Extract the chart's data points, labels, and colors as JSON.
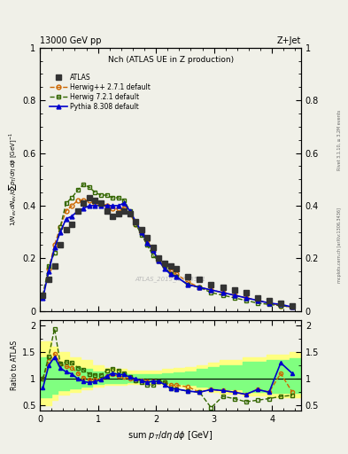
{
  "title_top": "13000 GeV pp",
  "title_right": "Z+Jet",
  "panel_title": "Nch (ATLAS UE in Z production)",
  "watermark": "ATLAS_2019_I1736531",
  "rivet_text": "Rivet 3.1.10, ≥ 3.2M events",
  "mcplots_text": "mcplots.cern.ch [arXiv:1306.3436]",
  "ylabel_main": "1/N_{ev} dN_{ev}/dsum p_T/dη dφ  [GeV]^{-1}",
  "ylabel_ratio": "Ratio to ATLAS",
  "xlabel": "sum p_T/dη dφ [GeV]",
  "atlas_x": [
    0.05,
    0.15,
    0.25,
    0.35,
    0.45,
    0.55,
    0.65,
    0.75,
    0.85,
    0.95,
    1.05,
    1.15,
    1.25,
    1.35,
    1.45,
    1.55,
    1.65,
    1.75,
    1.85,
    1.95,
    2.05,
    2.15,
    2.25,
    2.35,
    2.55,
    2.75,
    2.95,
    3.15,
    3.35,
    3.55,
    3.75,
    3.95,
    4.15,
    4.35
  ],
  "atlas_y": [
    0.06,
    0.12,
    0.17,
    0.25,
    0.31,
    0.33,
    0.38,
    0.41,
    0.43,
    0.42,
    0.41,
    0.38,
    0.36,
    0.37,
    0.38,
    0.37,
    0.34,
    0.31,
    0.28,
    0.24,
    0.2,
    0.18,
    0.17,
    0.16,
    0.13,
    0.12,
    0.1,
    0.09,
    0.08,
    0.07,
    0.05,
    0.04,
    0.03,
    0.02
  ],
  "herwig271_x": [
    0.05,
    0.15,
    0.25,
    0.35,
    0.45,
    0.55,
    0.65,
    0.75,
    0.85,
    0.95,
    1.05,
    1.15,
    1.25,
    1.35,
    1.45,
    1.55,
    1.65,
    1.75,
    1.85,
    1.95,
    2.05,
    2.15,
    2.25,
    2.35,
    2.55,
    2.75,
    2.95,
    3.15,
    3.35,
    3.55,
    3.75,
    3.95,
    4.15,
    4.35
  ],
  "herwig271_y": [
    0.06,
    0.16,
    0.25,
    0.32,
    0.38,
    0.4,
    0.42,
    0.42,
    0.42,
    0.41,
    0.41,
    0.4,
    0.39,
    0.39,
    0.39,
    0.37,
    0.33,
    0.3,
    0.27,
    0.23,
    0.19,
    0.17,
    0.15,
    0.14,
    0.11,
    0.09,
    0.08,
    0.07,
    0.06,
    0.05,
    0.04,
    0.03,
    0.02,
    0.015
  ],
  "herwig721_x": [
    0.05,
    0.15,
    0.25,
    0.35,
    0.45,
    0.55,
    0.65,
    0.75,
    0.85,
    0.95,
    1.05,
    1.15,
    1.25,
    1.35,
    1.45,
    1.55,
    1.65,
    1.75,
    1.85,
    1.95,
    2.05,
    2.15,
    2.25,
    2.35,
    2.55,
    2.75,
    2.95,
    3.15,
    3.35,
    3.55,
    3.75,
    3.95,
    4.15,
    4.35
  ],
  "herwig721_y": [
    0.06,
    0.17,
    0.22,
    0.32,
    0.41,
    0.43,
    0.46,
    0.48,
    0.47,
    0.45,
    0.44,
    0.44,
    0.43,
    0.43,
    0.42,
    0.38,
    0.33,
    0.29,
    0.25,
    0.21,
    0.19,
    0.17,
    0.14,
    0.13,
    0.1,
    0.09,
    0.07,
    0.06,
    0.05,
    0.04,
    0.03,
    0.025,
    0.02,
    0.015
  ],
  "pythia_x": [
    0.05,
    0.15,
    0.25,
    0.35,
    0.45,
    0.55,
    0.65,
    0.75,
    0.85,
    0.95,
    1.05,
    1.15,
    1.25,
    1.35,
    1.45,
    1.55,
    1.65,
    1.75,
    1.85,
    1.95,
    2.05,
    2.15,
    2.25,
    2.35,
    2.55,
    2.75,
    2.95,
    3.15,
    3.35,
    3.55,
    3.75,
    3.95,
    4.15,
    4.35
  ],
  "pythia_y": [
    0.05,
    0.15,
    0.24,
    0.3,
    0.35,
    0.36,
    0.38,
    0.39,
    0.4,
    0.4,
    0.4,
    0.4,
    0.4,
    0.4,
    0.41,
    0.38,
    0.34,
    0.3,
    0.26,
    0.23,
    0.19,
    0.16,
    0.14,
    0.13,
    0.1,
    0.09,
    0.08,
    0.07,
    0.06,
    0.05,
    0.04,
    0.03,
    0.025,
    0.015
  ],
  "ratio_herwig271_x": [
    0.05,
    0.15,
    0.25,
    0.35,
    0.45,
    0.55,
    0.65,
    0.75,
    0.85,
    0.95,
    1.05,
    1.15,
    1.25,
    1.35,
    1.45,
    1.55,
    1.65,
    1.75,
    1.85,
    1.95,
    2.05,
    2.15,
    2.25,
    2.35,
    2.55,
    2.75,
    2.95,
    3.15,
    3.35,
    3.55,
    3.75,
    3.95,
    4.15,
    4.35
  ],
  "ratio_herwig271_y": [
    1.0,
    1.33,
    1.47,
    1.28,
    1.23,
    1.21,
    1.11,
    1.02,
    0.98,
    0.98,
    1.0,
    1.05,
    1.08,
    1.05,
    1.03,
    1.0,
    0.97,
    0.97,
    0.96,
    0.96,
    0.95,
    0.94,
    0.88,
    0.88,
    0.85,
    0.75,
    0.8,
    0.78,
    0.75,
    0.71,
    0.8,
    0.75,
    1.1,
    0.75
  ],
  "ratio_herwig721_x": [
    0.05,
    0.15,
    0.25,
    0.35,
    0.45,
    0.55,
    0.65,
    0.75,
    0.85,
    0.95,
    1.05,
    1.15,
    1.25,
    1.35,
    1.45,
    1.55,
    1.65,
    1.75,
    1.85,
    1.95,
    2.05,
    2.15,
    2.25,
    2.35,
    2.55,
    2.75,
    2.95,
    3.15,
    3.35,
    3.55,
    3.75,
    3.95,
    4.15,
    4.35
  ],
  "ratio_herwig721_y": [
    1.0,
    1.42,
    1.94,
    1.28,
    1.32,
    1.3,
    1.21,
    1.17,
    1.09,
    1.07,
    1.07,
    1.16,
    1.19,
    1.16,
    1.11,
    1.03,
    0.97,
    0.94,
    0.89,
    0.88,
    0.95,
    0.94,
    0.82,
    0.81,
    0.77,
    0.75,
    0.46,
    0.67,
    0.63,
    0.57,
    0.6,
    0.63,
    0.67,
    0.69
  ],
  "ratio_pythia_x": [
    0.05,
    0.15,
    0.25,
    0.35,
    0.45,
    0.55,
    0.65,
    0.75,
    0.85,
    0.95,
    1.05,
    1.15,
    1.25,
    1.35,
    1.45,
    1.55,
    1.65,
    1.75,
    1.85,
    1.95,
    2.05,
    2.15,
    2.25,
    2.35,
    2.55,
    2.75,
    2.95,
    3.15,
    3.35,
    3.55,
    3.75,
    3.95,
    4.15,
    4.35
  ],
  "ratio_pythia_y": [
    0.83,
    1.25,
    1.41,
    1.2,
    1.13,
    1.09,
    1.0,
    0.95,
    0.93,
    0.95,
    0.98,
    1.05,
    1.11,
    1.08,
    1.08,
    1.03,
    1.0,
    0.97,
    0.93,
    0.96,
    0.95,
    0.89,
    0.82,
    0.81,
    0.77,
    0.75,
    0.8,
    0.78,
    0.75,
    0.71,
    0.8,
    0.75,
    1.3,
    1.1
  ],
  "yellow_band_x": [
    0.0,
    0.1,
    0.2,
    0.3,
    0.5,
    0.7,
    0.9,
    1.1,
    1.3,
    1.5,
    1.7,
    1.9,
    2.1,
    2.3,
    2.5,
    2.7,
    2.9,
    3.1,
    3.5,
    3.9,
    4.3,
    4.5
  ],
  "yellow_band_lo": [
    0.5,
    0.5,
    0.6,
    0.7,
    0.75,
    0.8,
    0.85,
    0.88,
    0.88,
    0.9,
    0.9,
    0.9,
    0.88,
    0.85,
    0.82,
    0.8,
    0.75,
    0.72,
    0.68,
    0.65,
    0.65,
    0.65
  ],
  "yellow_band_hi": [
    1.7,
    1.7,
    1.6,
    1.5,
    1.4,
    1.35,
    1.25,
    1.2,
    1.18,
    1.15,
    1.15,
    1.15,
    1.18,
    1.2,
    1.22,
    1.25,
    1.3,
    1.35,
    1.4,
    1.45,
    1.5,
    1.5
  ],
  "green_band_x": [
    0.0,
    0.1,
    0.2,
    0.3,
    0.5,
    0.7,
    0.9,
    1.1,
    1.3,
    1.5,
    1.7,
    1.9,
    2.1,
    2.3,
    2.5,
    2.7,
    2.9,
    3.1,
    3.5,
    3.9,
    4.3,
    4.5
  ],
  "green_band_lo": [
    0.65,
    0.65,
    0.72,
    0.78,
    0.82,
    0.86,
    0.9,
    0.92,
    0.92,
    0.93,
    0.93,
    0.93,
    0.92,
    0.9,
    0.88,
    0.86,
    0.82,
    0.8,
    0.76,
    0.74,
    0.73,
    0.73
  ],
  "green_band_hi": [
    1.4,
    1.4,
    1.35,
    1.28,
    1.22,
    1.18,
    1.14,
    1.12,
    1.1,
    1.09,
    1.09,
    1.09,
    1.1,
    1.12,
    1.14,
    1.18,
    1.22,
    1.26,
    1.32,
    1.36,
    1.39,
    1.39
  ],
  "main_ylim": [
    0,
    1.0
  ],
  "ratio_ylim": [
    0.4,
    2.1
  ],
  "xlim": [
    0,
    4.5
  ],
  "xticks": [
    0,
    1,
    2,
    3,
    4
  ],
  "atlas_color": "#333333",
  "herwig271_color": "#cc6600",
  "herwig721_color": "#336600",
  "pythia_color": "#0000cc",
  "yellow_color": "#ffff80",
  "green_color": "#80ff80",
  "bg_color": "#f0f0e8"
}
